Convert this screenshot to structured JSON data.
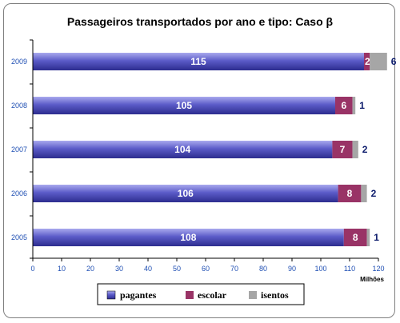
{
  "colors": {
    "pagantes_top": "#a9a9ee",
    "pagantes_mid": "#5b5bc8",
    "pagantes_bottom": "#2d2d8f",
    "escolar": "#993366",
    "isentos": "#a6a6a6",
    "axis": "#000000",
    "label_blue": "#1f4fb3",
    "label_navy": "#0b1a6b"
  },
  "chart_data": {
    "type": "bar",
    "orientation": "horizontal",
    "stacked": true,
    "title": "Passageiros transportados por ano e tipo: Caso β",
    "xlabel": "Milhões",
    "ylabel": "",
    "xlim": [
      0,
      120
    ],
    "xticks": [
      0,
      10,
      20,
      30,
      40,
      50,
      60,
      70,
      80,
      90,
      100,
      110,
      120
    ],
    "categories": [
      "2009",
      "2008",
      "2007",
      "2006",
      "2005"
    ],
    "series": [
      {
        "name": "pagantes",
        "values": [
          115,
          105,
          104,
          106,
          108
        ]
      },
      {
        "name": "escolar",
        "values": [
          2,
          6,
          7,
          8,
          8
        ]
      },
      {
        "name": "isentos",
        "values": [
          6,
          1,
          2,
          2,
          1
        ]
      }
    ],
    "legend_position": "bottom",
    "grid": false
  }
}
